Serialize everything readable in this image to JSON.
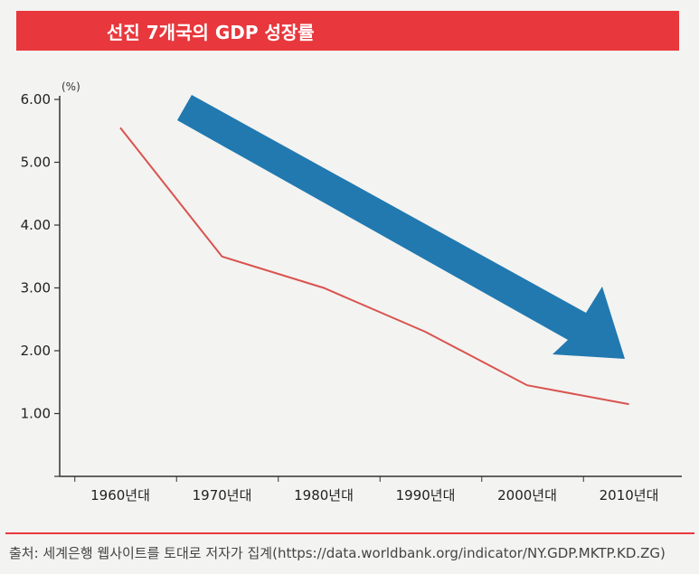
{
  "header": {
    "title": "선진 7개국의 GDP 성장률"
  },
  "source": {
    "text": "출처: 세계은행 웹사이트를 토대로 저자가 집계(https://data.worldbank.org/indicator/NY.GDP.MKTP.KD.ZG)"
  },
  "colors": {
    "title_bar": "#e8383d",
    "line": "#d9534f",
    "arrow": "#2179b0",
    "axis": "#333333"
  },
  "chart_data": {
    "type": "line",
    "title": "선진 7개국의 GDP 성장률",
    "unit_label": "(%)",
    "categories": [
      "1960년대",
      "1970년대",
      "1980년대",
      "1990년대",
      "2000년대",
      "2010년대"
    ],
    "series": [
      {
        "values": [
          5.55,
          3.5,
          3.0,
          2.3,
          1.45,
          1.15
        ]
      }
    ],
    "y_ticks": [
      "6.00",
      "5.00",
      "4.00",
      "3.00",
      "2.00",
      "1.00"
    ],
    "ylim": [
      0,
      6
    ],
    "grid": false,
    "annotation": {
      "type": "arrow",
      "meaning": "downward trend",
      "icon": "down-right-arrow"
    }
  }
}
